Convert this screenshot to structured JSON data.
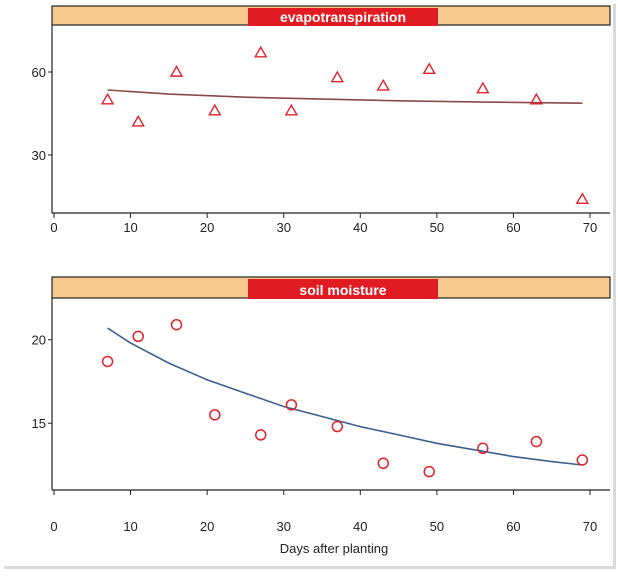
{
  "chart_data": [
    {
      "type": "scatter",
      "title": "evapotranspiration",
      "xlabel": "",
      "ylabel": "",
      "xlim": [
        0,
        75
      ],
      "ylim": [
        9,
        77
      ],
      "xticks": [
        0,
        10,
        20,
        30,
        40,
        50,
        60,
        70
      ],
      "yticks": [
        30,
        60
      ],
      "marker": "triangle",
      "colors": {
        "marker": "#e0222b",
        "fit": "#8b4a4a",
        "header": "#f8c98e",
        "title_bg": "#e01b22",
        "title_text": "#ffffff"
      },
      "points": [
        {
          "x": 7,
          "y": 50
        },
        {
          "x": 11,
          "y": 42
        },
        {
          "x": 16,
          "y": 60
        },
        {
          "x": 21,
          "y": 46
        },
        {
          "x": 27,
          "y": 67
        },
        {
          "x": 31,
          "y": 46
        },
        {
          "x": 37,
          "y": 58
        },
        {
          "x": 43,
          "y": 55
        },
        {
          "x": 49,
          "y": 61
        },
        {
          "x": 56,
          "y": 54
        },
        {
          "x": 63,
          "y": 50
        },
        {
          "x": 69,
          "y": 14
        }
      ],
      "fit": [
        {
          "x": 7,
          "y": 53.5
        },
        {
          "x": 15,
          "y": 52.0
        },
        {
          "x": 25,
          "y": 50.9
        },
        {
          "x": 35,
          "y": 50.2
        },
        {
          "x": 45,
          "y": 49.6
        },
        {
          "x": 55,
          "y": 49.2
        },
        {
          "x": 69,
          "y": 48.7
        }
      ]
    },
    {
      "type": "scatter",
      "title": "soil moisture",
      "xlabel": "Days after planting",
      "ylabel": "",
      "xlim": [
        0,
        75
      ],
      "ylim": [
        11,
        22.5
      ],
      "xticks": [
        0,
        10,
        20,
        30,
        40,
        50,
        60,
        70
      ],
      "yticks": [
        15,
        20
      ],
      "marker": "circle",
      "colors": {
        "marker": "#e0222b",
        "fit": "#3d5f8f",
        "header": "#f8c98e",
        "title_bg": "#e01b22",
        "title_text": "#ffffff"
      },
      "points": [
        {
          "x": 7,
          "y": 18.7
        },
        {
          "x": 11,
          "y": 20.2
        },
        {
          "x": 16,
          "y": 20.9
        },
        {
          "x": 21,
          "y": 15.5
        },
        {
          "x": 27,
          "y": 14.3
        },
        {
          "x": 31,
          "y": 16.1
        },
        {
          "x": 37,
          "y": 14.8
        },
        {
          "x": 43,
          "y": 12.6
        },
        {
          "x": 49,
          "y": 12.1
        },
        {
          "x": 56,
          "y": 13.5
        },
        {
          "x": 63,
          "y": 13.9
        },
        {
          "x": 69,
          "y": 12.8
        }
      ],
      "fit": [
        {
          "x": 7,
          "y": 20.7
        },
        {
          "x": 10,
          "y": 19.8
        },
        {
          "x": 15,
          "y": 18.6
        },
        {
          "x": 20,
          "y": 17.6
        },
        {
          "x": 25,
          "y": 16.8
        },
        {
          "x": 30,
          "y": 16.0
        },
        {
          "x": 35,
          "y": 15.4
        },
        {
          "x": 40,
          "y": 14.8
        },
        {
          "x": 45,
          "y": 14.3
        },
        {
          "x": 50,
          "y": 13.8
        },
        {
          "x": 55,
          "y": 13.4
        },
        {
          "x": 60,
          "y": 13.0
        },
        {
          "x": 65,
          "y": 12.7
        },
        {
          "x": 69,
          "y": 12.5
        }
      ]
    }
  ]
}
